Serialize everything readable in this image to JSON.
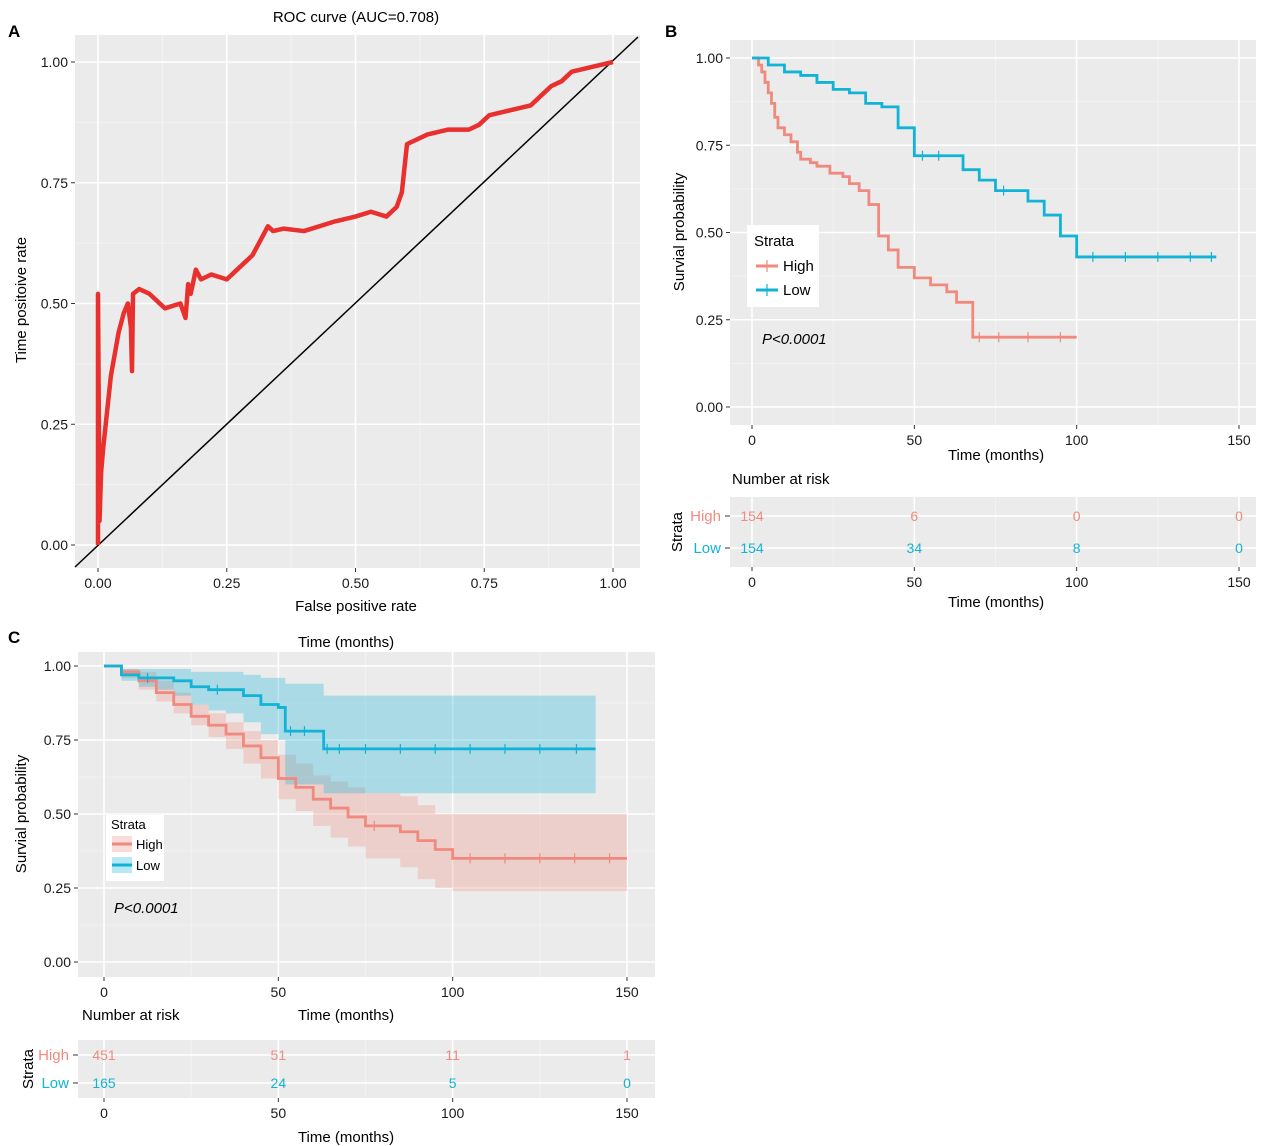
{
  "colors": {
    "high": "#f08a7e",
    "low": "#11b3d6",
    "roc": "#e8302e",
    "panel": "#ebebeb"
  },
  "chart_data": [
    {
      "id": "A",
      "panel_label": "A",
      "type": "line",
      "title": "ROC curve (AUC=0.708)",
      "xlabel": "False positive rate",
      "ylabel": "Time positoive rate",
      "xlim": [
        0,
        1
      ],
      "ylim": [
        0,
        1
      ],
      "xticks": [
        "0.00",
        "0.25",
        "0.50",
        "0.75",
        "1.00"
      ],
      "yticks": [
        "0.00",
        "0.25",
        "0.50",
        "0.75",
        "1.00"
      ],
      "series": [
        {
          "x": [
            0,
            0,
            0.003,
            0.006,
            0.01,
            0.015,
            0.02,
            0.025,
            0.03,
            0.035,
            0.04,
            0.05,
            0.058,
            0.064,
            0.066,
            0.068,
            0.08,
            0.1,
            0.13,
            0.16,
            0.17,
            0.175,
            0.18,
            0.19,
            0.2,
            0.22,
            0.25,
            0.27,
            0.3,
            0.32,
            0.33,
            0.34,
            0.36,
            0.4,
            0.43,
            0.46,
            0.5,
            0.53,
            0.56,
            0.58,
            0.59,
            0.6,
            0.64,
            0.68,
            0.72,
            0.74,
            0.76,
            0.8,
            0.84,
            0.86,
            0.88,
            0.9,
            0.92,
            0.96,
            1.0
          ],
          "y": [
            0,
            0.52,
            0.05,
            0.15,
            0.2,
            0.25,
            0.3,
            0.35,
            0.38,
            0.41,
            0.44,
            0.48,
            0.5,
            0.45,
            0.36,
            0.52,
            0.53,
            0.52,
            0.49,
            0.5,
            0.47,
            0.54,
            0.52,
            0.57,
            0.55,
            0.56,
            0.55,
            0.57,
            0.6,
            0.64,
            0.66,
            0.65,
            0.655,
            0.65,
            0.66,
            0.67,
            0.68,
            0.69,
            0.68,
            0.7,
            0.73,
            0.83,
            0.85,
            0.86,
            0.86,
            0.87,
            0.89,
            0.9,
            0.91,
            0.93,
            0.95,
            0.96,
            0.98,
            0.99,
            1.0
          ]
        }
      ],
      "reference_line": {
        "x": [
          0,
          1
        ],
        "y": [
          0,
          1
        ]
      }
    },
    {
      "id": "B",
      "panel_label": "B",
      "type": "line",
      "title": "",
      "xlabel": "Time (months)",
      "ylabel": "Survial probability",
      "xlim": [
        0,
        150
      ],
      "ylim": [
        0,
        1
      ],
      "xticks": [
        "0",
        "50",
        "100",
        "150"
      ],
      "yticks": [
        "0.00",
        "0.25",
        "0.50",
        "0.75",
        "1.00"
      ],
      "legend": {
        "title": "Strata",
        "position": "left-middle",
        "entries": [
          "High",
          "Low"
        ]
      },
      "annotation": "P<0.0001",
      "series": [
        {
          "name": "High",
          "color_key": "high",
          "x": [
            0,
            2,
            3,
            4,
            5,
            6,
            7,
            8,
            10,
            12,
            14,
            15,
            18,
            20,
            24,
            28,
            30,
            33,
            36,
            39,
            42,
            45,
            50,
            55,
            60,
            63,
            68,
            72,
            80,
            90,
            100
          ],
          "y": [
            1,
            0.98,
            0.96,
            0.93,
            0.9,
            0.87,
            0.83,
            0.8,
            0.78,
            0.76,
            0.73,
            0.71,
            0.7,
            0.69,
            0.67,
            0.66,
            0.64,
            0.62,
            0.58,
            0.49,
            0.45,
            0.4,
            0.37,
            0.35,
            0.33,
            0.3,
            0.2,
            0.2,
            0.2,
            0.2,
            0.2
          ]
        },
        {
          "name": "Low",
          "color_key": "low",
          "x": [
            0,
            5,
            10,
            15,
            20,
            25,
            30,
            35,
            40,
            45,
            50,
            55,
            60,
            65,
            70,
            75,
            80,
            85,
            90,
            95,
            100,
            110,
            120,
            130,
            140,
            143
          ],
          "y": [
            1,
            0.98,
            0.96,
            0.95,
            0.93,
            0.91,
            0.9,
            0.87,
            0.86,
            0.8,
            0.72,
            0.72,
            0.72,
            0.68,
            0.65,
            0.62,
            0.62,
            0.59,
            0.55,
            0.49,
            0.43,
            0.43,
            0.43,
            0.43,
            0.43,
            0.43
          ]
        }
      ]
    },
    {
      "id": "B-risk",
      "type": "table",
      "title": "Number at risk",
      "xlabel": "Time (months)",
      "ylabel": "Strata",
      "xlim": [
        0,
        150
      ],
      "xticks": [
        "0",
        "50",
        "100",
        "150"
      ],
      "x": [
        0,
        50,
        100,
        150
      ],
      "series": [
        {
          "name": "High",
          "color_key": "high",
          "values": [
            "154",
            "6",
            "0",
            "0"
          ]
        },
        {
          "name": "Low",
          "color_key": "low",
          "values": [
            "154",
            "34",
            "8",
            "0"
          ]
        }
      ]
    },
    {
      "id": "C",
      "panel_label": "C",
      "type": "area",
      "title": "Time (months)",
      "xlabel": "Time (months)",
      "ylabel": "Survial probability",
      "xlim": [
        0,
        150
      ],
      "ylim": [
        0,
        1
      ],
      "xticks": [
        "0",
        "50",
        "100",
        "150"
      ],
      "yticks": [
        "0.00",
        "0.25",
        "0.50",
        "0.75",
        "1.00"
      ],
      "legend": {
        "title": "Strata",
        "position": "left-middle",
        "entries": [
          "High",
          "Low"
        ]
      },
      "annotation": "P<0.0001",
      "series": [
        {
          "name": "High",
          "color_key": "high",
          "x": [
            0,
            5,
            10,
            15,
            20,
            25,
            30,
            35,
            40,
            45,
            50,
            55,
            60,
            65,
            70,
            75,
            80,
            85,
            90,
            95,
            100,
            110,
            120,
            130,
            140,
            150
          ],
          "y": [
            1,
            0.98,
            0.95,
            0.91,
            0.87,
            0.83,
            0.8,
            0.77,
            0.73,
            0.69,
            0.62,
            0.59,
            0.55,
            0.52,
            0.49,
            0.46,
            0.46,
            0.44,
            0.41,
            0.38,
            0.35,
            0.35,
            0.35,
            0.35,
            0.35,
            0.35
          ],
          "lower": [
            1,
            0.96,
            0.92,
            0.88,
            0.84,
            0.8,
            0.76,
            0.72,
            0.67,
            0.62,
            0.55,
            0.51,
            0.46,
            0.42,
            0.39,
            0.35,
            0.35,
            0.32,
            0.28,
            0.25,
            0.24,
            0.24,
            0.24,
            0.24,
            0.24,
            0.24
          ],
          "upper": [
            1,
            0.99,
            0.98,
            0.95,
            0.91,
            0.87,
            0.84,
            0.81,
            0.78,
            0.75,
            0.7,
            0.67,
            0.63,
            0.61,
            0.59,
            0.57,
            0.57,
            0.56,
            0.53,
            0.5,
            0.5,
            0.5,
            0.5,
            0.5,
            0.5,
            0.5
          ]
        },
        {
          "name": "Low",
          "color_key": "low",
          "x": [
            0,
            5,
            10,
            15,
            20,
            25,
            30,
            35,
            40,
            45,
            50,
            52,
            55,
            60,
            63,
            65,
            70,
            80,
            90,
            100,
            110,
            120,
            130,
            141
          ],
          "y": [
            1,
            0.97,
            0.96,
            0.96,
            0.95,
            0.93,
            0.92,
            0.92,
            0.9,
            0.87,
            0.86,
            0.78,
            0.78,
            0.78,
            0.72,
            0.72,
            0.72,
            0.72,
            0.72,
            0.72,
            0.72,
            0.72,
            0.72,
            0.72
          ],
          "lower": [
            1,
            0.95,
            0.93,
            0.92,
            0.9,
            0.87,
            0.85,
            0.84,
            0.81,
            0.77,
            0.75,
            0.6,
            0.6,
            0.6,
            0.57,
            0.57,
            0.57,
            0.57,
            0.57,
            0.57,
            0.57,
            0.57,
            0.57,
            0.57
          ],
          "upper": [
            1,
            0.99,
            0.99,
            0.99,
            0.99,
            0.98,
            0.98,
            0.98,
            0.97,
            0.96,
            0.96,
            0.94,
            0.94,
            0.94,
            0.9,
            0.9,
            0.9,
            0.9,
            0.9,
            0.9,
            0.9,
            0.9,
            0.9,
            0.9
          ]
        }
      ]
    },
    {
      "id": "C-risk",
      "type": "table",
      "title": "Number at risk",
      "xlabel": "Time (months)",
      "ylabel": "Strata",
      "xlim": [
        0,
        150
      ],
      "xticks": [
        "0",
        "50",
        "100",
        "150"
      ],
      "x": [
        0,
        50,
        100,
        150
      ],
      "series": [
        {
          "name": "High",
          "color_key": "high",
          "values": [
            "451",
            "51",
            "11",
            "1"
          ]
        },
        {
          "name": "Low",
          "color_key": "low",
          "values": [
            "165",
            "24",
            "5",
            "0"
          ]
        }
      ]
    }
  ]
}
